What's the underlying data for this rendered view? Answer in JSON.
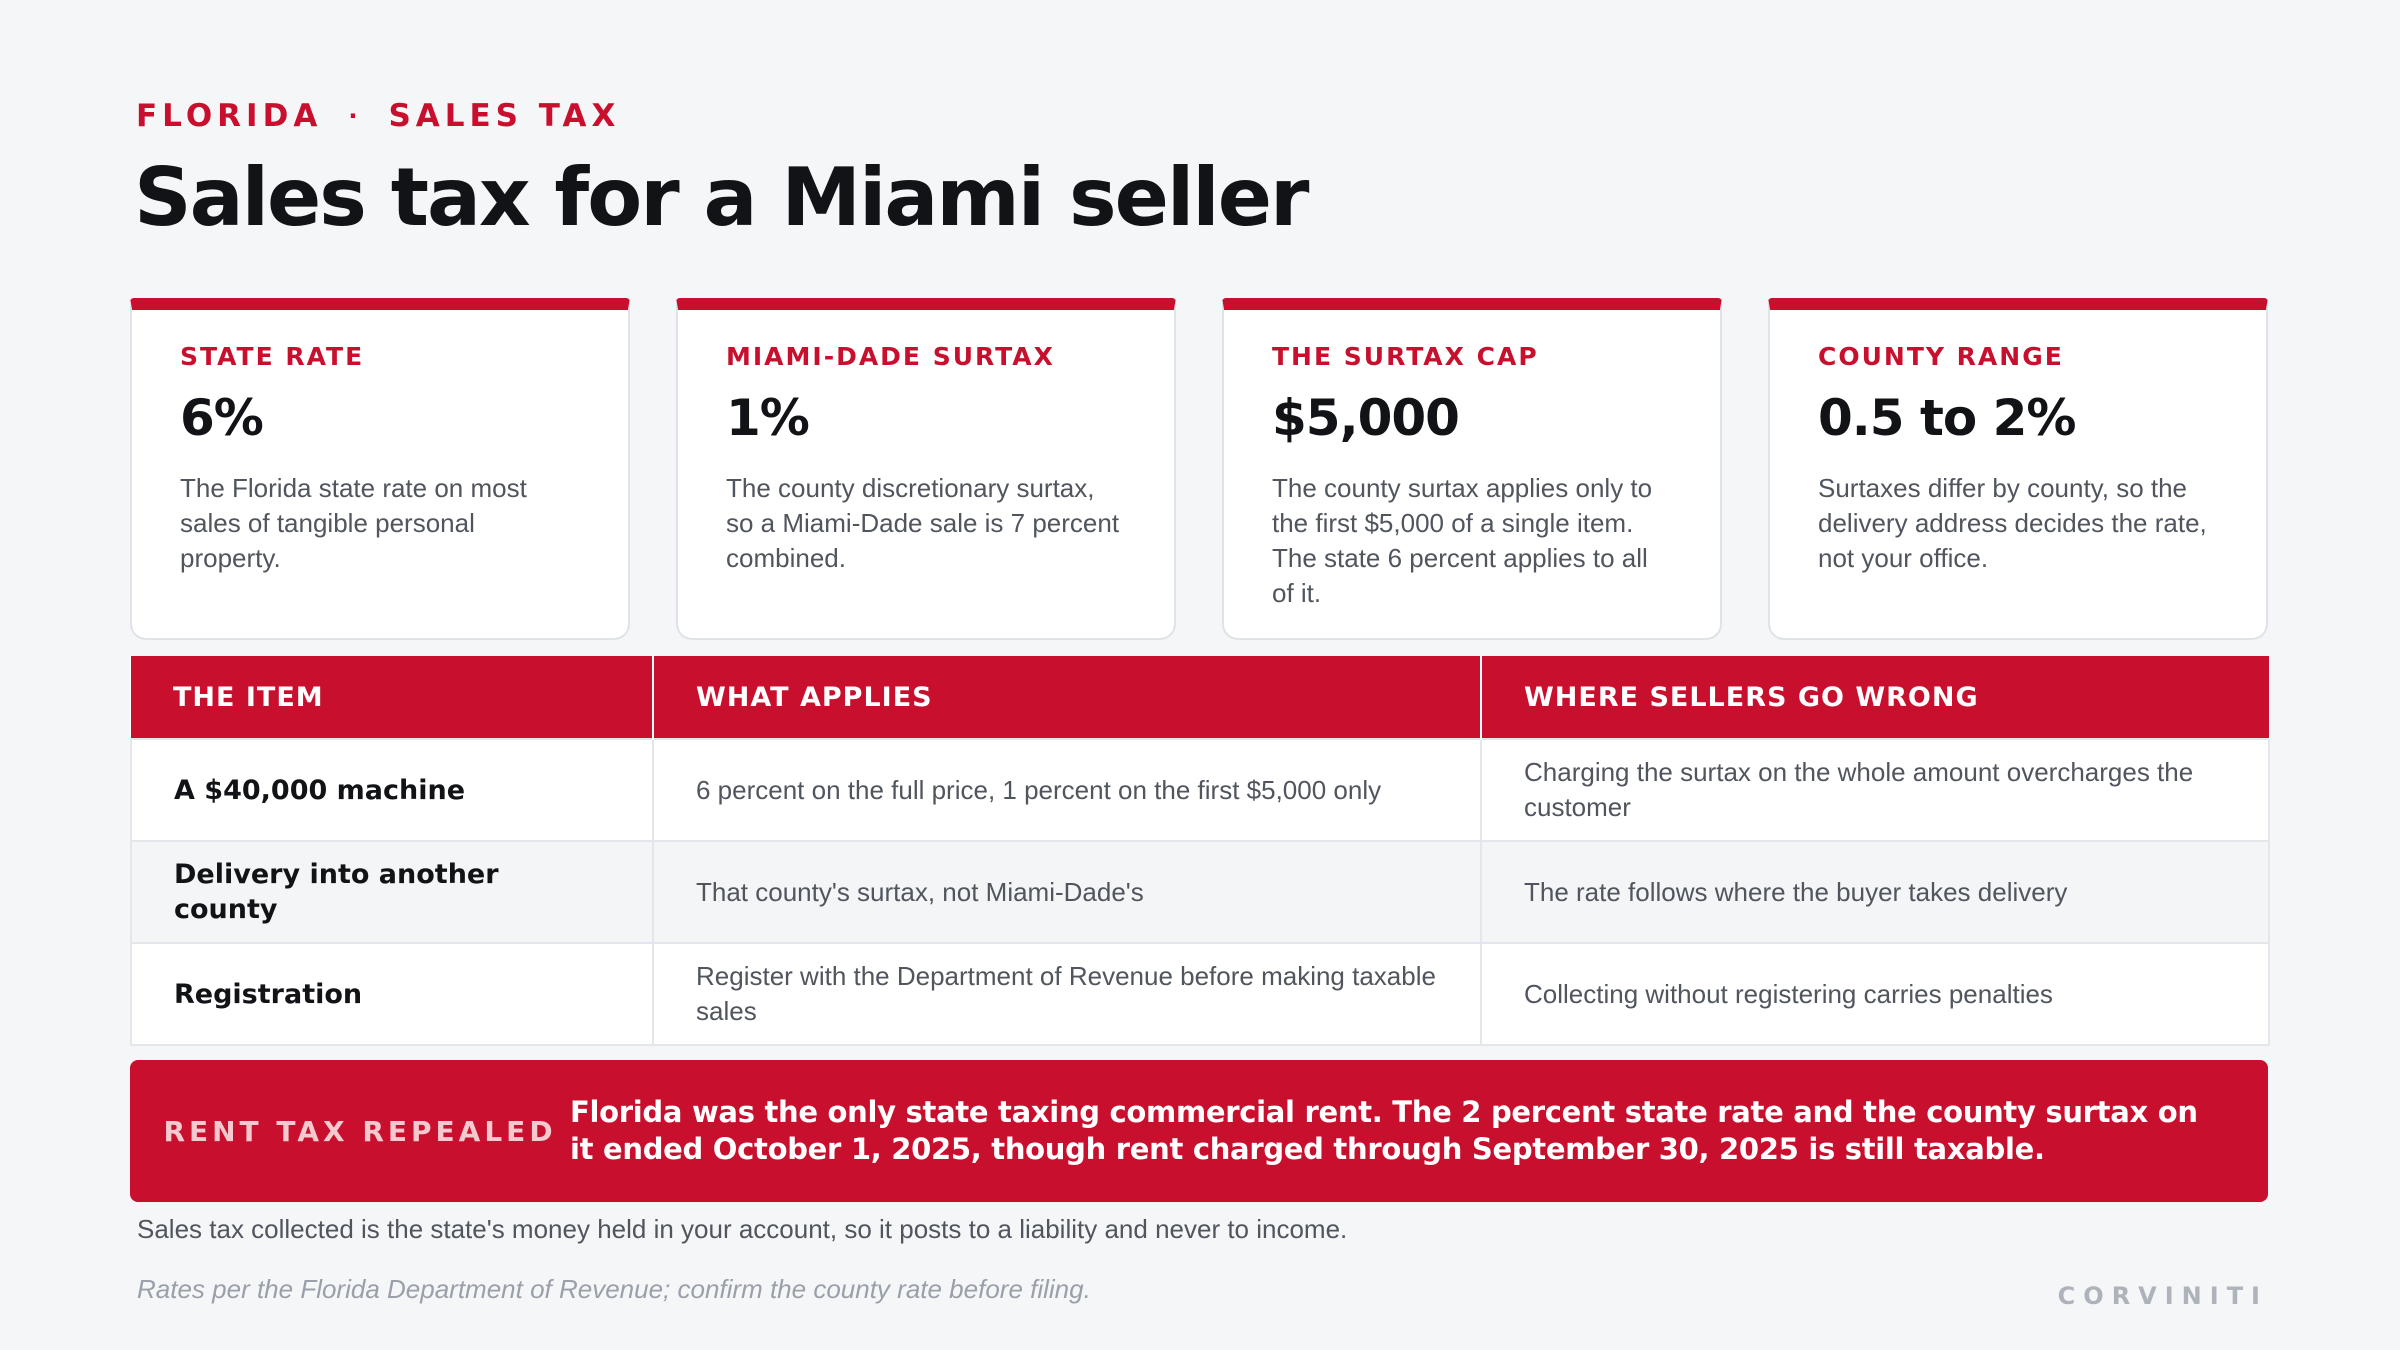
{
  "header": {
    "eyebrow_left": "FLORIDA",
    "eyebrow_separator": "·",
    "eyebrow_right": "SALES TAX",
    "title": "Sales tax for a Miami seller"
  },
  "cards": [
    {
      "label": "STATE RATE",
      "value": "6%",
      "text": "The Florida state rate on most sales of tangible personal property."
    },
    {
      "label": "MIAMI-DADE SURTAX",
      "value": "1%",
      "text": "The county discretionary surtax, so a Miami-Dade sale is 7 percent combined."
    },
    {
      "label": "THE SURTAX CAP",
      "value": "$5,000",
      "text": "The county surtax applies only to the first $5,000 of a single item. The state 6 percent applies to all of it."
    },
    {
      "label": "COUNTY RANGE",
      "value": "0.5 to 2%",
      "text": "Surtaxes differ by county, so the delivery address decides the rate, not your office."
    }
  ],
  "table": {
    "headers": [
      "THE ITEM",
      "WHAT APPLIES",
      "WHERE SELLERS GO WRONG"
    ],
    "rows": [
      [
        "A $40,000 machine",
        "6 percent on the full price, 1 percent on the first $5,000 only",
        "Charging the surtax on the whole amount overcharges the customer"
      ],
      [
        "Delivery into another county",
        "That county's surtax, not Miami-Dade's",
        "The rate follows where the buyer takes delivery"
      ],
      [
        "Registration",
        "Register with the Department of Revenue before making taxable sales",
        "Collecting without registering carries penalties"
      ]
    ]
  },
  "banner": {
    "label": "RENT TAX REPEALED",
    "text": "Florida was the only state taxing commercial rent. The 2 percent state rate and the county surtax on it ended October 1, 2025, though rent charged through September 30, 2025 is still taxable."
  },
  "note": "Sales tax collected is the state's money held in your account, so it posts to a liability and never to income.",
  "footnote": "Rates per the Florida Department of Revenue; confirm the county rate before filing.",
  "brand": "CORVINITI",
  "colors": {
    "accent": "#c8102e",
    "background": "#f5f6f8",
    "text": "#16181d",
    "muted": "#50555e"
  }
}
